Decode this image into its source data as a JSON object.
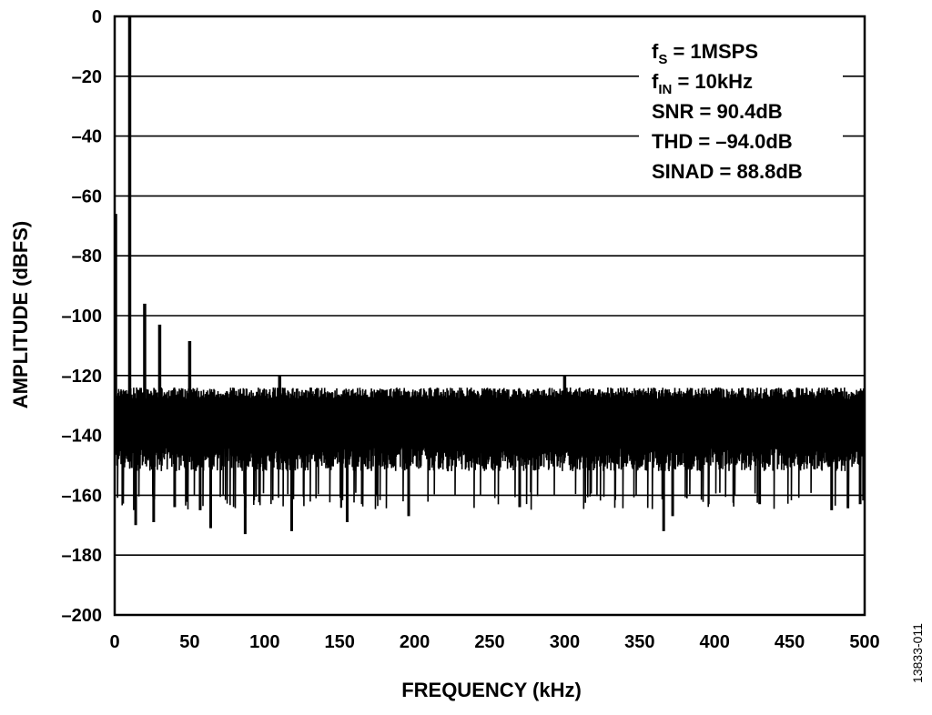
{
  "chart_data": {
    "type": "line",
    "title": "",
    "xlabel": "FREQUENCY (kHz)",
    "ylabel": "AMPLITUDE (dBFS)",
    "xlim": [
      0,
      500
    ],
    "ylim": [
      -200,
      0
    ],
    "x_ticks": [
      "0",
      "50",
      "100",
      "150",
      "200",
      "250",
      "300",
      "350",
      "400",
      "450",
      "500"
    ],
    "y_ticks": [
      "0",
      "–20",
      "–40",
      "–60",
      "–80",
      "–100",
      "–120",
      "–140",
      "–160",
      "–180",
      "–200"
    ],
    "x_tick_values": [
      0,
      50,
      100,
      150,
      200,
      250,
      300,
      350,
      400,
      450,
      500
    ],
    "y_tick_values": [
      0,
      -20,
      -40,
      -60,
      -80,
      -100,
      -120,
      -140,
      -160,
      -180,
      -200
    ],
    "grid": "horizontal",
    "noise_floor": {
      "upper": -124,
      "lower": -152,
      "typical_min": -165
    },
    "series": [
      {
        "peaks": [
          {
            "x": 0.6,
            "y": -66
          },
          {
            "x": 10,
            "y": 0
          },
          {
            "x": 20,
            "y": -96
          },
          {
            "x": 30,
            "y": -103
          },
          {
            "x": 50,
            "y": -108.5
          },
          {
            "x": 110,
            "y": -120
          },
          {
            "x": 300,
            "y": -120
          }
        ],
        "dips": [
          {
            "x": 14,
            "y": -170
          },
          {
            "x": 26,
            "y": -169
          },
          {
            "x": 40,
            "y": -164
          },
          {
            "x": 57,
            "y": -165
          },
          {
            "x": 64,
            "y": -171
          },
          {
            "x": 87,
            "y": -173
          },
          {
            "x": 118,
            "y": -172
          },
          {
            "x": 155,
            "y": -169
          },
          {
            "x": 196,
            "y": -167
          },
          {
            "x": 270,
            "y": -164
          },
          {
            "x": 366,
            "y": -172
          },
          {
            "x": 372,
            "y": -167
          },
          {
            "x": 430,
            "y": -163
          },
          {
            "x": 478,
            "y": -165
          },
          {
            "x": 497,
            "y": -163
          }
        ]
      }
    ]
  },
  "annotations": {
    "fs": {
      "main": "f",
      "sub": "S",
      "rest": " = 1MSPS"
    },
    "fin": {
      "main": "f",
      "sub": "IN",
      "rest": " = 10kHz"
    },
    "snr": "SNR = 90.4dB",
    "thd": "THD = –94.0dB",
    "sinad": "SINAD = 88.8dB"
  },
  "figure_id": "13833-011"
}
